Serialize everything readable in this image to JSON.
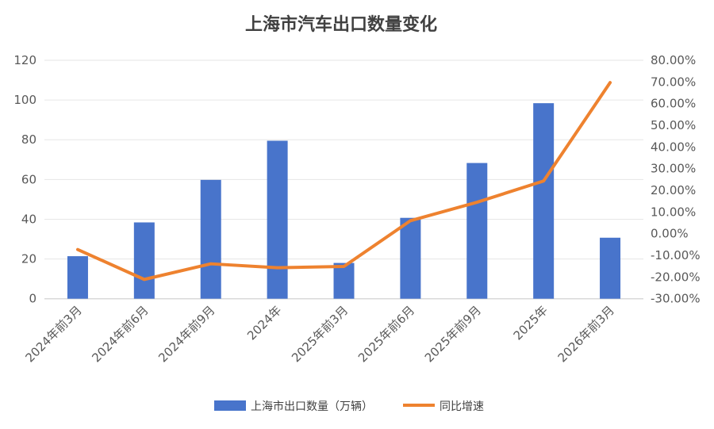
{
  "chart_data": {
    "type": "bar+line",
    "title": "上海市汽车出口数量变化",
    "categories": [
      "2024年前3月",
      "2024年前6月",
      "2024年前9月",
      "2024年",
      "2025年前3月",
      "2025年前6月",
      "2025年前9月",
      "2025年",
      "2026年前3月"
    ],
    "series": [
      {
        "name": "上海市出口数量（万辆）",
        "type": "bar",
        "axis": "left",
        "color": "#4874CB",
        "values": [
          21.4,
          38.4,
          59.8,
          79.5,
          18.0,
          40.7,
          68.3,
          98.4,
          30.7
        ]
      },
      {
        "name": "同比增速",
        "type": "line",
        "axis": "right",
        "color": "#EE822F",
        "values": [
          -7.3,
          -21.1,
          -13.9,
          -15.7,
          -15.1,
          6.0,
          14.5,
          24.3,
          69.7
        ]
      }
    ],
    "left_axis": {
      "ylim": [
        0,
        120
      ],
      "ticks": [
        "0",
        "20",
        "40",
        "60",
        "80",
        "100",
        "120"
      ]
    },
    "right_axis": {
      "ylim": [
        -30,
        80
      ],
      "unit": "%",
      "ticks": [
        "-30.00%",
        "-20.00%",
        "-10.00%",
        "0.00%",
        "10.00%",
        "20.00%",
        "30.00%",
        "40.00%",
        "50.00%",
        "60.00%",
        "70.00%",
        "80.00%"
      ]
    },
    "grid": true,
    "legend_position": "bottom"
  }
}
